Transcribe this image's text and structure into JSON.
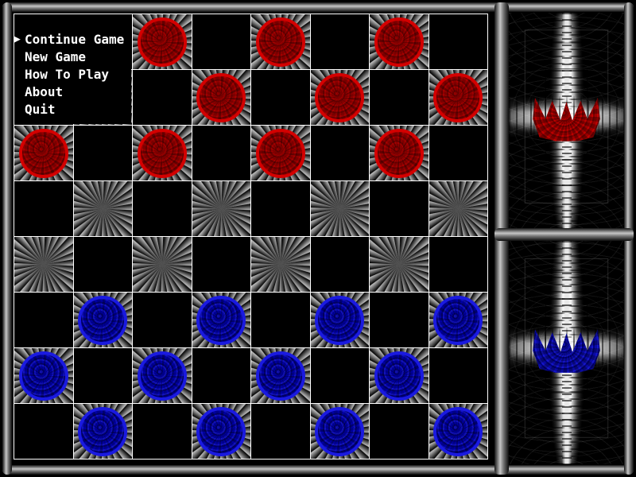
{
  "menu": {
    "cursor_glyph": "▶",
    "items": [
      {
        "label": "Continue Game",
        "selected": true
      },
      {
        "label": "New Game",
        "selected": false
      },
      {
        "label": "How To Play",
        "selected": false
      },
      {
        "label": "About",
        "selected": false
      },
      {
        "label": "Quit",
        "selected": false
      }
    ]
  },
  "board": {
    "rows": 8,
    "cols": 8,
    "light_square_when": "row_plus_col_even",
    "pieces": [
      {
        "row": 0,
        "col": 2,
        "color": "red"
      },
      {
        "row": 0,
        "col": 4,
        "color": "red"
      },
      {
        "row": 0,
        "col": 6,
        "color": "red"
      },
      {
        "row": 1,
        "col": 3,
        "color": "red"
      },
      {
        "row": 1,
        "col": 5,
        "color": "red"
      },
      {
        "row": 1,
        "col": 7,
        "color": "red"
      },
      {
        "row": 2,
        "col": 0,
        "color": "red"
      },
      {
        "row": 2,
        "col": 2,
        "color": "red"
      },
      {
        "row": 2,
        "col": 4,
        "color": "red"
      },
      {
        "row": 2,
        "col": 6,
        "color": "red"
      },
      {
        "row": 5,
        "col": 1,
        "color": "blue"
      },
      {
        "row": 5,
        "col": 3,
        "color": "blue"
      },
      {
        "row": 5,
        "col": 5,
        "color": "blue"
      },
      {
        "row": 5,
        "col": 7,
        "color": "blue"
      },
      {
        "row": 6,
        "col": 0,
        "color": "blue"
      },
      {
        "row": 6,
        "col": 2,
        "color": "blue"
      },
      {
        "row": 6,
        "col": 4,
        "color": "blue"
      },
      {
        "row": 6,
        "col": 6,
        "color": "blue"
      },
      {
        "row": 7,
        "col": 1,
        "color": "blue"
      },
      {
        "row": 7,
        "col": 3,
        "color": "blue"
      },
      {
        "row": 7,
        "col": 5,
        "color": "blue"
      },
      {
        "row": 7,
        "col": 7,
        "color": "blue"
      }
    ]
  },
  "side_panels": {
    "top": {
      "player": "red",
      "crown_icon": "red-crown",
      "crown_color": "#c00000"
    },
    "bottom": {
      "player": "blue",
      "crown_icon": "blue-crown",
      "crown_color": "#1515cc"
    }
  },
  "colors": {
    "red_piece_ring": "#d40000",
    "red_piece_fill": "#8e0000",
    "blue_piece_ring": "#1a1ae0",
    "blue_piece_fill": "#0000a0",
    "grid_line": "#ffffff",
    "dark_square": "#000000",
    "menu_text": "#ffffff",
    "frame_gray": "#c6c6c6",
    "background": "#000000"
  }
}
